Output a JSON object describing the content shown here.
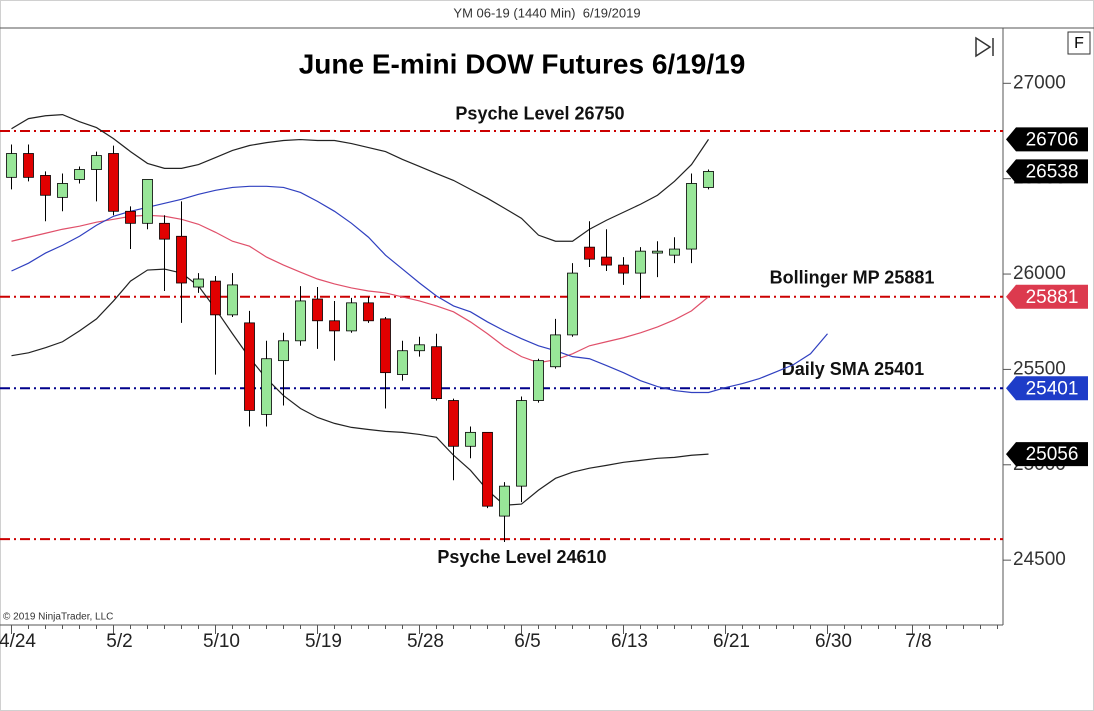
{
  "header": "YM 06-19 (1440 Min)  6/19/2019",
  "copyright": "© 2019 NinjaTrader, LLC",
  "button": "F",
  "chart_data": {
    "type": "candlestick",
    "title": "June E-mini DOW Futures 6/19/19",
    "categories": [
      "4/24",
      null,
      null,
      null,
      null,
      null,
      "5/2",
      null,
      null,
      null,
      null,
      null,
      "5/10",
      null,
      null,
      null,
      null,
      null,
      "5/19",
      null,
      null,
      null,
      null,
      null,
      "5/28",
      null,
      null,
      null,
      null,
      null,
      "6/5",
      null,
      null,
      null,
      null,
      null,
      "6/13",
      null,
      null,
      null,
      null,
      null,
      "6/21",
      null,
      null,
      null,
      null,
      null,
      "6/30",
      null,
      null,
      null,
      null,
      "7/8",
      null,
      null,
      null,
      null,
      null
    ],
    "open": [
      26507,
      26632,
      26517,
      26402,
      26496,
      26548,
      26632,
      26329,
      26266,
      26266,
      26198,
      25932,
      25963,
      25786,
      25744,
      25264,
      25546,
      25650,
      25869,
      25755,
      25702,
      25849,
      25765,
      25473,
      25598,
      25619,
      25337,
      25097,
      25170,
      24731,
      24888,
      25337,
      25514,
      25681,
      26141,
      26089,
      26047,
      26005,
      26110,
      26099,
      26131,
      26454,
      null,
      null,
      null,
      null,
      null,
      null,
      null,
      null,
      null,
      null,
      null,
      null,
      null,
      null,
      null,
      null,
      null
    ],
    "high": [
      26679,
      26679,
      26538,
      26527,
      26564,
      26642,
      26673,
      26355,
      26496,
      26308,
      26381,
      26005,
      25990,
      26005,
      25807,
      25650,
      25692,
      25937,
      25932,
      25859,
      25875,
      25880,
      25775,
      25650,
      25671,
      25687,
      25347,
      25201,
      25170,
      24909,
      25358,
      25556,
      25765,
      26057,
      26277,
      26235,
      26089,
      26141,
      26172,
      26193,
      26527,
      26548,
      null,
      null,
      null,
      null,
      null,
      null,
      null,
      null,
      null,
      null,
      null,
      null,
      null,
      null,
      null,
      null,
      null
    ],
    "low": [
      26444,
      26486,
      26277,
      26329,
      26475,
      26381,
      26308,
      26131,
      26235,
      25911,
      25744,
      25901,
      25473,
      25775,
      25201,
      25201,
      25311,
      25624,
      25608,
      25546,
      25692,
      25744,
      25295,
      25441,
      25567,
      25337,
      24919,
      25034,
      24773,
      24595,
      24804,
      25326,
      25504,
      25671,
      26037,
      26016,
      25943,
      25869,
      25984,
      26057,
      26057,
      26444,
      null,
      null,
      null,
      null,
      null,
      null,
      null,
      null,
      null,
      null,
      null,
      null,
      null,
      null,
      null,
      null,
      null
    ],
    "close": [
      26632,
      26507,
      26413,
      26475,
      26548,
      26621,
      26329,
      26266,
      26496,
      26183,
      25953,
      25974,
      25786,
      25943,
      25285,
      25556,
      25650,
      25859,
      25755,
      25702,
      25849,
      25755,
      25483,
      25598,
      25629,
      25347,
      25097,
      25170,
      24783,
      24888,
      25337,
      25546,
      25681,
      26005,
      26078,
      26047,
      26005,
      26120,
      26120,
      26131,
      26475,
      26538,
      null,
      null,
      null,
      null,
      null,
      null,
      null,
      null,
      null,
      null,
      null,
      null,
      null,
      null,
      null,
      null,
      null
    ],
    "up_color": "#98e698",
    "down_color": "#e00000",
    "lines": [
      {
        "color": "#222222",
        "values": [
          26762,
          26815,
          26830,
          26836,
          26799,
          26768,
          26710,
          26642,
          26580,
          26554,
          26554,
          26574,
          26611,
          26648,
          26674,
          26689,
          26700,
          26705,
          26700,
          26700,
          26684,
          26663,
          26642,
          26601,
          26564,
          26527,
          26491,
          26444,
          26397,
          26345,
          26292,
          26204,
          26172,
          26172,
          26235,
          26282,
          26324,
          26366,
          26413,
          26486,
          26574,
          26706,
          null,
          null,
          null,
          null,
          null,
          null,
          null,
          null,
          null,
          null,
          null,
          null,
          null,
          null,
          null,
          null,
          null
        ]
      },
      {
        "color": "#222222",
        "values": [
          25572,
          25587,
          25614,
          25645,
          25702,
          25765,
          25859,
          25963,
          26021,
          26026,
          26005,
          25937,
          25817,
          25687,
          25561,
          25452,
          25363,
          25295,
          25248,
          25217,
          25196,
          25185,
          25175,
          25170,
          25159,
          25144,
          25050,
          24971,
          24867,
          24788,
          24794,
          24867,
          24929,
          24961,
          24982,
          24997,
          25013,
          25023,
          25034,
          25039,
          25050,
          25056,
          null,
          null,
          null,
          null,
          null,
          null,
          null,
          null,
          null,
          null,
          null,
          null,
          null,
          null,
          null,
          null,
          null
        ]
      },
      {
        "color": "#e0506a",
        "values": [
          26172,
          26193,
          26214,
          26235,
          26251,
          26272,
          26287,
          26303,
          26308,
          26303,
          26287,
          26261,
          26219,
          26172,
          26146,
          26089,
          26047,
          26010,
          25974,
          25948,
          25927,
          25911,
          25901,
          25880,
          25859,
          25833,
          25802,
          25749,
          25687,
          25619,
          25567,
          25535,
          25551,
          25582,
          25624,
          25645,
          25666,
          25692,
          25723,
          25760,
          25807,
          25881,
          null,
          null,
          null,
          null,
          null,
          null,
          null,
          null,
          null,
          null,
          null,
          null,
          null,
          null,
          null,
          null,
          null
        ]
      },
      {
        "color": "#3040c0",
        "values": [
          26016,
          26057,
          26110,
          26151,
          26198,
          26256,
          26303,
          26329,
          26350,
          26371,
          26392,
          26418,
          26439,
          26454,
          26460,
          26460,
          26454,
          26428,
          26381,
          26329,
          26266,
          26193,
          26099,
          26026,
          25953,
          25885,
          25833,
          25802,
          25749,
          25702,
          25661,
          25624,
          25598,
          25567,
          25556,
          25520,
          25483,
          25441,
          25410,
          25389,
          25379,
          25379,
          25405,
          25426,
          25452,
          25488,
          25525,
          25582,
          25687,
          null,
          null,
          null,
          null,
          null,
          null,
          null,
          null,
          null,
          null
        ]
      }
    ],
    "levels": [
      {
        "label": "Psyche Level 26750",
        "value": 26750,
        "color": "#cc0000"
      },
      {
        "label": "Bollinger MP 25881",
        "value": 25881,
        "color": "#cc0000"
      },
      {
        "label": "Daily SMA 25401",
        "value": 25401,
        "color": "#00008b"
      },
      {
        "label": "Psyche Level 24610",
        "value": 24610,
        "color": "#cc0000"
      }
    ],
    "price_markers": [
      {
        "value": 26706,
        "color": "#000000"
      },
      {
        "value": 26538,
        "color": "#000000"
      },
      {
        "value": 25881,
        "color": "#dc3a4e"
      },
      {
        "value": 25401,
        "color": "#1e3cc8"
      },
      {
        "value": 25056,
        "color": "#000000"
      }
    ],
    "ylim": [
      24160,
      27290
    ],
    "yticks": [
      24500,
      25000,
      25500,
      26000,
      26500,
      27000
    ]
  }
}
